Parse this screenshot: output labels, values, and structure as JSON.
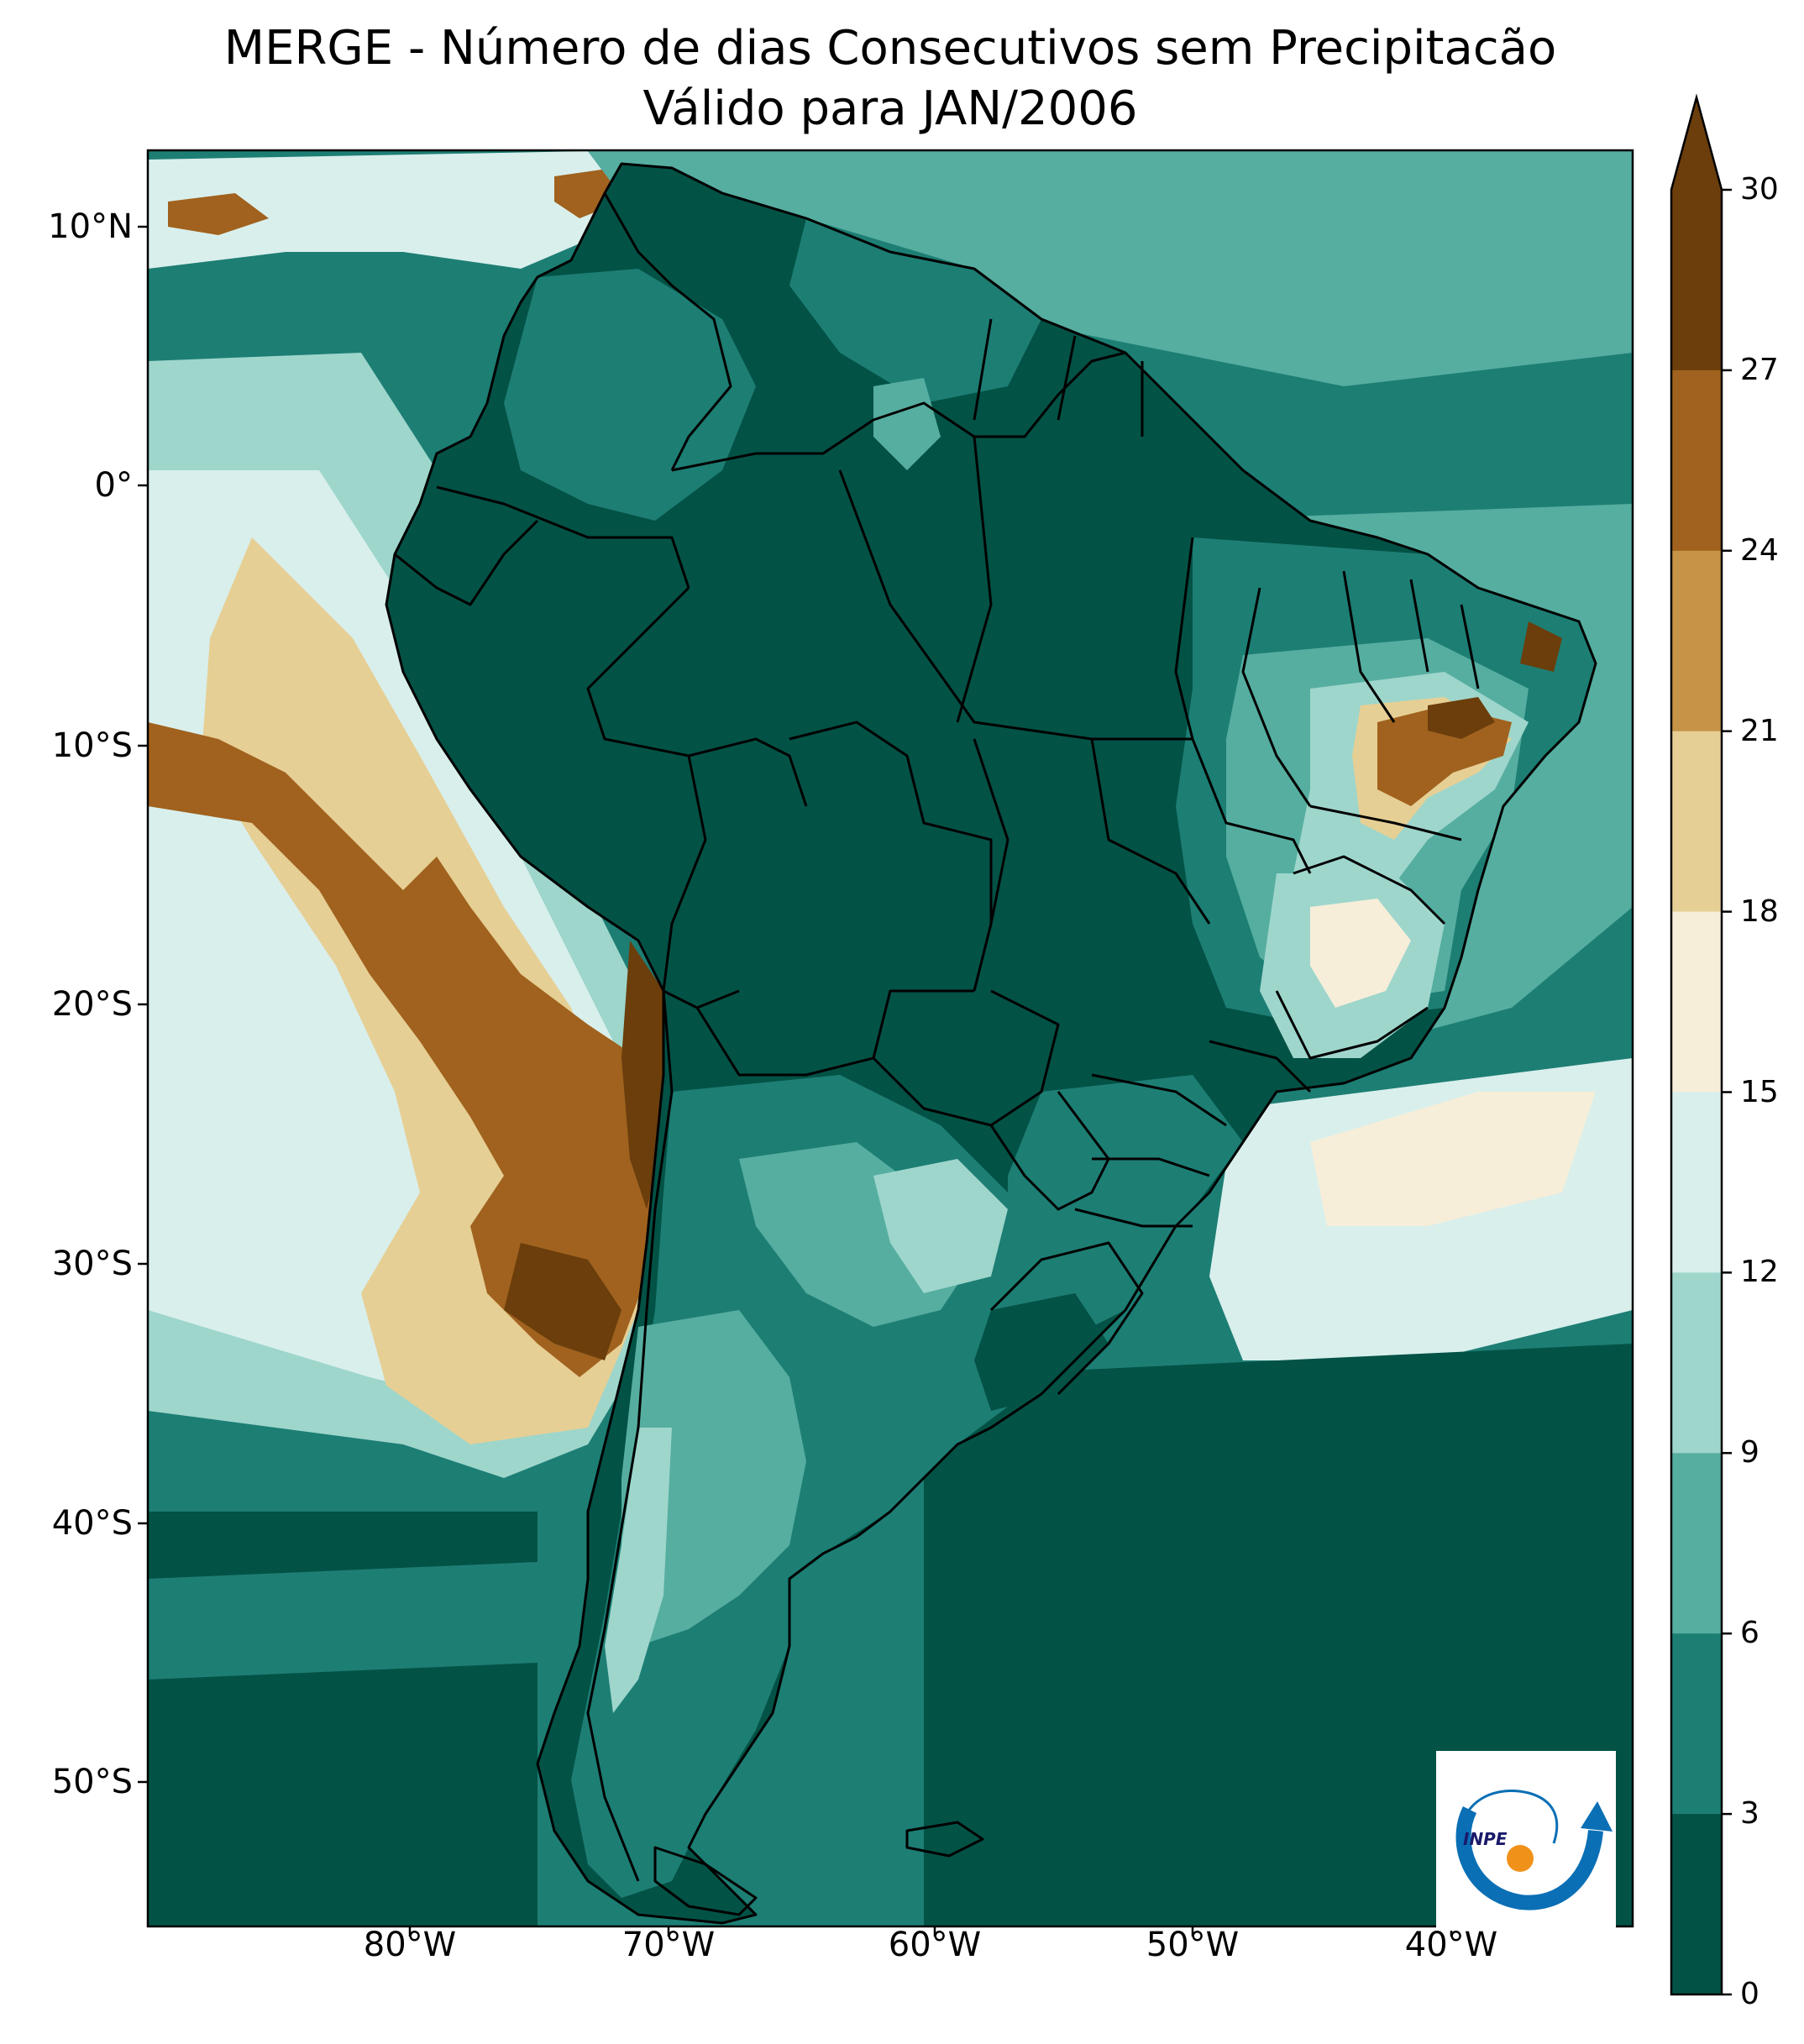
{
  "title": {
    "line1": "MERGE - Número de dias Consecutivos sem Precipitacão",
    "line2": "Válido para JAN/2006"
  },
  "axes": {
    "lat_ticks": [
      "10°N",
      "0°",
      "10°S",
      "20°S",
      "30°S",
      "40°S",
      "50°S"
    ],
    "lon_ticks": [
      "80°W",
      "70°W",
      "60°W",
      "50°W",
      "40°W"
    ]
  },
  "colorbar": {
    "ticks": [
      "30",
      "27",
      "24",
      "21",
      "18",
      "15",
      "12",
      "9",
      "6",
      "3",
      "0"
    ],
    "colors": [
      "#6b3e0c",
      "#a0621e",
      "#c69447",
      "#e6cf94",
      "#f6eed9",
      "#d9efec",
      "#9ed6cc",
      "#56aea0",
      "#1d7e74",
      "#035246"
    ],
    "extend": "max"
  },
  "colors": {
    "ocean_base": "#1d7e74",
    "land_base": "#035246",
    "border": "#000000"
  },
  "logo": {
    "text": "INPE",
    "arc_color": "#0a6fb5",
    "sun_color": "#f0921a"
  }
}
